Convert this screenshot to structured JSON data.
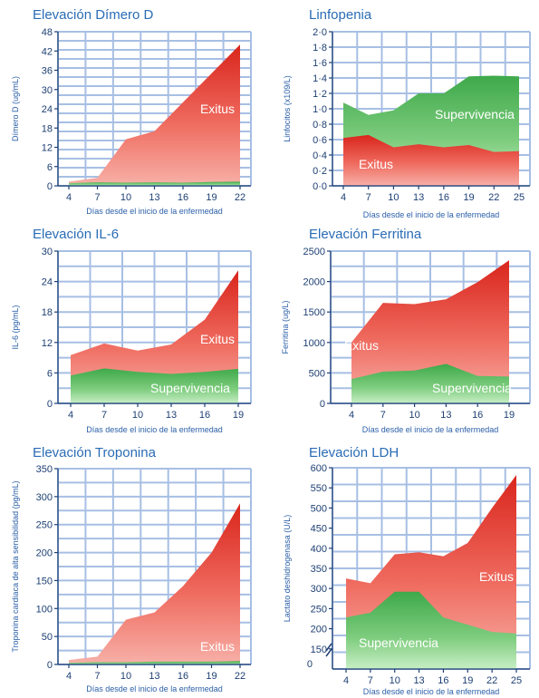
{
  "chart_data": [
    {
      "type": "area",
      "title": "Elevación Dímero D",
      "xlabel": "Días desde el inicio de la enfermedad",
      "ylabel": "Dímero D (ug/mL)",
      "x": [
        4,
        7,
        10,
        13,
        16,
        19,
        22
      ],
      "ylim": [
        0,
        48
      ],
      "yticks": [
        0,
        6,
        12,
        18,
        24,
        30,
        36,
        42,
        48
      ],
      "series": [
        {
          "name": "Exitus",
          "color": "#e3382e",
          "values": [
            1.3,
            2.5,
            14.5,
            17,
            26,
            35,
            44
          ]
        },
        {
          "name": "",
          "color": "#4caf50",
          "values": [
            0.8,
            1.1,
            1.0,
            1.1,
            1.0,
            1.2,
            1.3
          ]
        }
      ],
      "labels_shown": [
        "Exitus"
      ]
    },
    {
      "type": "area",
      "title": "Linfopenia",
      "xlabel": "Días desde el inicio de la enfermedad",
      "ylabel": "Linfocitos (x109/L)",
      "x": [
        4,
        7,
        10,
        13,
        16,
        19,
        22,
        25
      ],
      "ylim": [
        0,
        2.0
      ],
      "yticks": [
        0,
        0.2,
        0.4,
        0.6,
        0.8,
        1.0,
        1.2,
        1.4,
        1.6,
        1.8,
        2.0
      ],
      "ytick_labels": [
        "0·0",
        "0·2",
        "0·4",
        "0·6",
        "0·8",
        "1·0",
        "1·2",
        "1·4",
        "1·6",
        "1·8",
        "2·0"
      ],
      "series": [
        {
          "name": "Supervivencia",
          "color": "#4caf50",
          "values": [
            1.08,
            0.92,
            0.98,
            1.2,
            1.2,
            1.42,
            1.43,
            1.42
          ]
        },
        {
          "name": "Exitus",
          "color": "#e3382e",
          "values": [
            0.62,
            0.66,
            0.5,
            0.54,
            0.5,
            0.53,
            0.44,
            0.45
          ]
        }
      ]
    },
    {
      "type": "area",
      "title": "Elevación IL-6",
      "xlabel": "Días desde el inicio de la enfermedad",
      "ylabel": "IL-6 (pg/mL)",
      "x": [
        4,
        7,
        10,
        13,
        16,
        19
      ],
      "ylim": [
        0,
        30
      ],
      "yticks": [
        0,
        6,
        12,
        18,
        24,
        30
      ],
      "series": [
        {
          "name": "Exitus",
          "color": "#e3382e",
          "values": [
            9.5,
            11.8,
            10.4,
            11.6,
            16.5,
            26.2
          ]
        },
        {
          "name": "Supervivencia",
          "color": "#4caf50",
          "values": [
            5.5,
            6.9,
            6.2,
            5.8,
            6.2,
            6.8
          ]
        }
      ]
    },
    {
      "type": "area",
      "title": "Elevación Ferritina",
      "xlabel": "Días desde el inicio de la enfermedad",
      "ylabel": "Ferritina (ug/L)",
      "x": [
        4,
        7,
        10,
        13,
        16,
        19
      ],
      "ylim": [
        0,
        2500
      ],
      "yticks": [
        0,
        500,
        1000,
        1500,
        2000,
        2500
      ],
      "series": [
        {
          "name": "Exitus",
          "color": "#e3382e",
          "values": [
            1000,
            1650,
            1630,
            1710,
            1990,
            2350
          ]
        },
        {
          "name": "Supervivencia",
          "color": "#4caf50",
          "values": [
            400,
            520,
            540,
            650,
            450,
            440
          ]
        }
      ]
    },
    {
      "type": "area",
      "title": "Elevación Troponina",
      "xlabel": "Días desde el inicio de la enfermedad",
      "ylabel": "Troponina cardiaca de alta sensibilidad (pg/mL)",
      "x": [
        4,
        7,
        10,
        13,
        16,
        19,
        22
      ],
      "ylim": [
        0,
        350
      ],
      "yticks": [
        0,
        50,
        100,
        150,
        200,
        250,
        300,
        350
      ],
      "series": [
        {
          "name": "Exitus",
          "color": "#e3382e",
          "values": [
            8,
            14,
            80,
            93,
            140,
            200,
            288
          ]
        },
        {
          "name": "",
          "color": "#4caf50",
          "values": [
            3,
            4,
            4,
            5,
            5,
            5,
            6
          ]
        }
      ],
      "labels_shown": [
        "Exitus"
      ]
    },
    {
      "type": "area",
      "title": "Elevación LDH",
      "xlabel": "Días desde el inicio de la enfermedad",
      "ylabel": "Lactato deshidrogenasa (U/L)",
      "x": [
        4,
        7,
        10,
        13,
        16,
        19,
        22,
        25
      ],
      "ylim": [
        100,
        600
      ],
      "axis_break": true,
      "yticks": [
        150,
        200,
        250,
        300,
        350,
        400,
        450,
        500,
        550,
        600
      ],
      "ytick_labels_extra": [
        "0"
      ],
      "series": [
        {
          "name": "Exitus",
          "color": "#e3382e",
          "values": [
            325,
            313,
            385,
            390,
            380,
            413,
            500,
            582
          ]
        },
        {
          "name": "Supervivencia",
          "color": "#4caf50",
          "values": [
            228,
            240,
            292,
            292,
            228,
            210,
            192,
            188
          ]
        }
      ]
    }
  ]
}
